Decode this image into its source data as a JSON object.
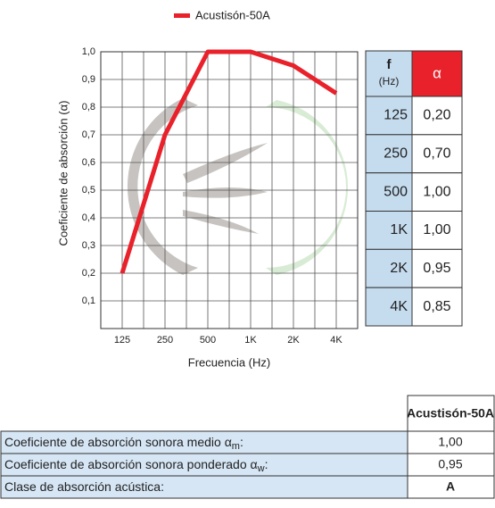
{
  "chart_data": {
    "type": "line",
    "x_label": "Frecuencia (Hz)",
    "y_label": "Coeficiente de absorción (α)",
    "categories": [
      "125",
      "250",
      "500",
      "1K",
      "2K",
      "4K"
    ],
    "series": [
      {
        "name": "Acustisón-50A",
        "color": "#e8212b",
        "values": [
          0.2,
          0.7,
          1.0,
          1.0,
          0.95,
          0.85
        ],
        "value_labels": [
          "0,20",
          "0,70",
          "1,00",
          "1,00",
          "0,95",
          "0,85"
        ]
      }
    ],
    "ylim": [
      0,
      1
    ],
    "yticks": [
      {
        "value": 0.1,
        "label": "0,1"
      },
      {
        "value": 0.2,
        "label": "0,2"
      },
      {
        "value": 0.3,
        "label": "0,3"
      },
      {
        "value": 0.4,
        "label": "0,4"
      },
      {
        "value": 0.5,
        "label": "0,5"
      },
      {
        "value": 0.6,
        "label": "0,6"
      },
      {
        "value": 0.7,
        "label": "0,7"
      },
      {
        "value": 0.8,
        "label": "0,8"
      },
      {
        "value": 0.9,
        "label": "0,9"
      },
      {
        "value": 1.0,
        "label": "1,0"
      }
    ],
    "grid": true
  },
  "frequency_table": {
    "header": [
      "f",
      "(Hz)",
      "α"
    ]
  },
  "summary_table": {
    "header": "Acustisón-50A",
    "rows": [
      {
        "label": "Coeficiente de absorción sonora medio α",
        "subscript": "m",
        "suffix": ":",
        "value": "1,00"
      },
      {
        "label": "Coeficiente de absorción sonora ponderado α",
        "subscript": "w",
        "suffix": ":",
        "value": "0,95"
      },
      {
        "label": "Clase de absorción acústica:",
        "value": "A"
      }
    ]
  }
}
